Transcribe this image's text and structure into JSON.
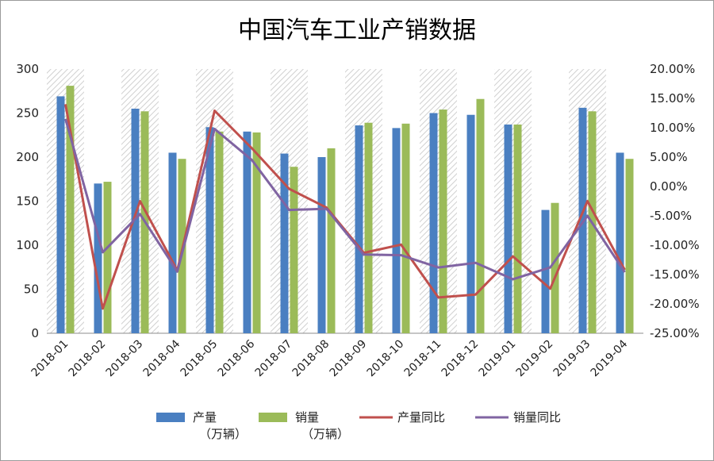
{
  "chart_data": {
    "type": "bar",
    "title": "中国汽车工业产销数据",
    "categories": [
      "2018-01",
      "2018-02",
      "2018-03",
      "2018-04",
      "2018-05",
      "2018-06",
      "2018-07",
      "2018-08",
      "2018-09",
      "2018-10",
      "2018-11",
      "2018-12",
      "2019-01",
      "2019-02",
      "2019-03",
      "2019-04"
    ],
    "ylim": [
      0,
      300
    ],
    "yticks": [
      "0",
      "50",
      "100",
      "150",
      "200",
      "250",
      "300"
    ],
    "y2lim": [
      -25,
      20
    ],
    "y2ticks": [
      "-25.00%",
      "-20.00%",
      "-15.00%",
      "-10.00%",
      "-5.00%",
      "0.00%",
      "5.00%",
      "10.00%",
      "15.00%",
      "20.00%"
    ],
    "series": [
      {
        "name": "产量",
        "unit": "（万辆）",
        "type": "bar",
        "axis": "left",
        "color": "#4a7fc1",
        "values": [
          269,
          170,
          255,
          205,
          234,
          229,
          204,
          200,
          236,
          233,
          250,
          248,
          237,
          140,
          256,
          205
        ]
      },
      {
        "name": "销量",
        "unit": "（万辆）",
        "type": "bar",
        "axis": "left",
        "color": "#9bbb59",
        "values": [
          281,
          172,
          252,
          198,
          229,
          228,
          189,
          210,
          239,
          238,
          254,
          266,
          237,
          148,
          252,
          198
        ]
      },
      {
        "name": "产量同比",
        "type": "line",
        "axis": "right",
        "color": "#c0504d",
        "values": [
          14.0,
          -20.8,
          -2.5,
          -14.3,
          12.9,
          6.5,
          -0.4,
          -3.6,
          -11.3,
          -9.9,
          -18.9,
          -18.4,
          -11.9,
          -17.4,
          -2.5,
          -14.2
        ]
      },
      {
        "name": "销量同比",
        "type": "line",
        "axis": "right",
        "color": "#8064a2",
        "values": [
          11.5,
          -11.2,
          -4.7,
          -14.5,
          9.8,
          4.5,
          -4.0,
          -3.8,
          -11.6,
          -11.7,
          -13.8,
          -13.0,
          -15.8,
          -13.8,
          -5.0,
          -14.6
        ]
      }
    ],
    "grid": false,
    "legend_position": "bottom"
  }
}
